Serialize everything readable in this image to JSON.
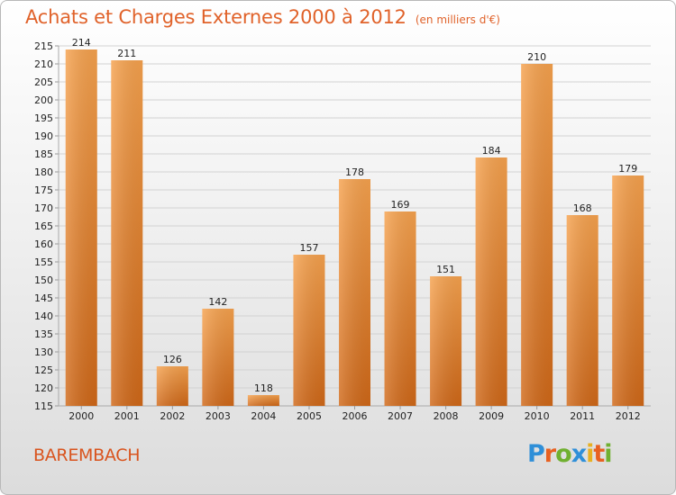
{
  "title": "Achats et Charges Externes 2000 à 2012",
  "unit": "(en milliers d'€)",
  "footer": {
    "city": "BAREMBACH",
    "logo_letters": [
      "P",
      "r",
      "o",
      "x",
      "i",
      "t",
      "i"
    ]
  },
  "colors": {
    "bar": "#f08a2c",
    "title": "#e0622a",
    "logo": [
      "#2f8fd8",
      "#e86020",
      "#70b030",
      "#2f8fd8",
      "#e8b020",
      "#e86020",
      "#70b030"
    ]
  },
  "chart_data": {
    "type": "bar",
    "categories": [
      "2000",
      "2001",
      "2002",
      "2003",
      "2004",
      "2005",
      "2006",
      "2007",
      "2008",
      "2009",
      "2010",
      "2011",
      "2012"
    ],
    "values": [
      214,
      211,
      126,
      142,
      118,
      157,
      178,
      169,
      151,
      184,
      210,
      168,
      179
    ],
    "ylim": [
      115,
      215
    ],
    "yticks": [
      115,
      120,
      125,
      130,
      135,
      140,
      145,
      150,
      155,
      160,
      165,
      170,
      175,
      180,
      185,
      190,
      195,
      200,
      205,
      210,
      215
    ],
    "grid": true
  }
}
